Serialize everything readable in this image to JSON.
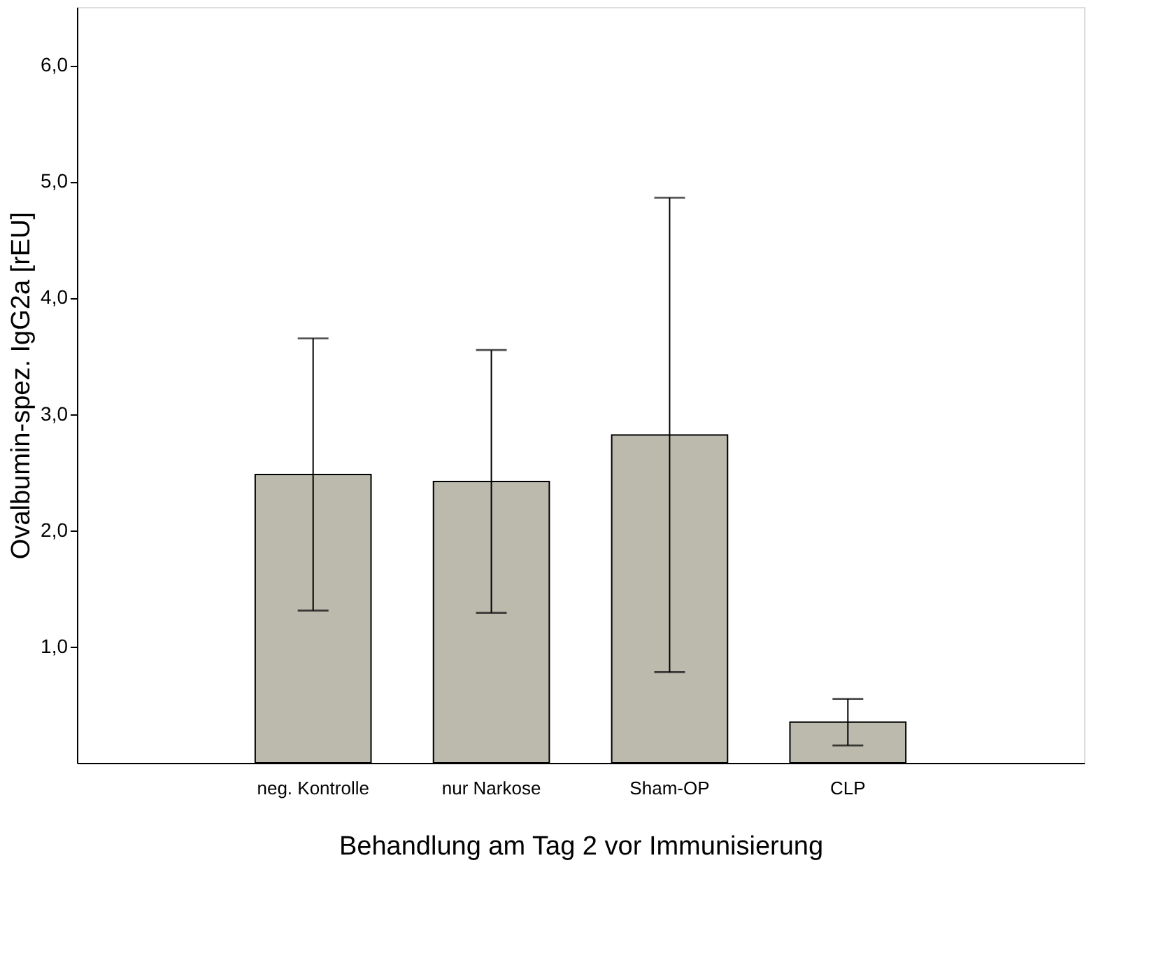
{
  "chart_data": {
    "type": "bar",
    "xlabel": "Behandlung am Tag 2 vor Immunisierung",
    "ylabel": "Ovalbumin-spez. IgG2a [rEU]",
    "categories": [
      "neg. Kontrolle",
      "nur Narkose",
      "Sham-OP",
      "CLP"
    ],
    "values": [
      2.48,
      2.42,
      2.82,
      0.35
    ],
    "errors": [
      1.17,
      1.13,
      2.04,
      0.2
    ],
    "color": "#bbbaad",
    "ylim": [
      0,
      6.5
    ],
    "yticks": [
      {
        "value": 1,
        "label": "1,0"
      },
      {
        "value": 2,
        "label": "2,0"
      },
      {
        "value": 3,
        "label": "3,0"
      },
      {
        "value": 4,
        "label": "4,0"
      },
      {
        "value": 5,
        "label": "5,0"
      },
      {
        "value": 6,
        "label": "6,0"
      }
    ],
    "grid": false
  }
}
